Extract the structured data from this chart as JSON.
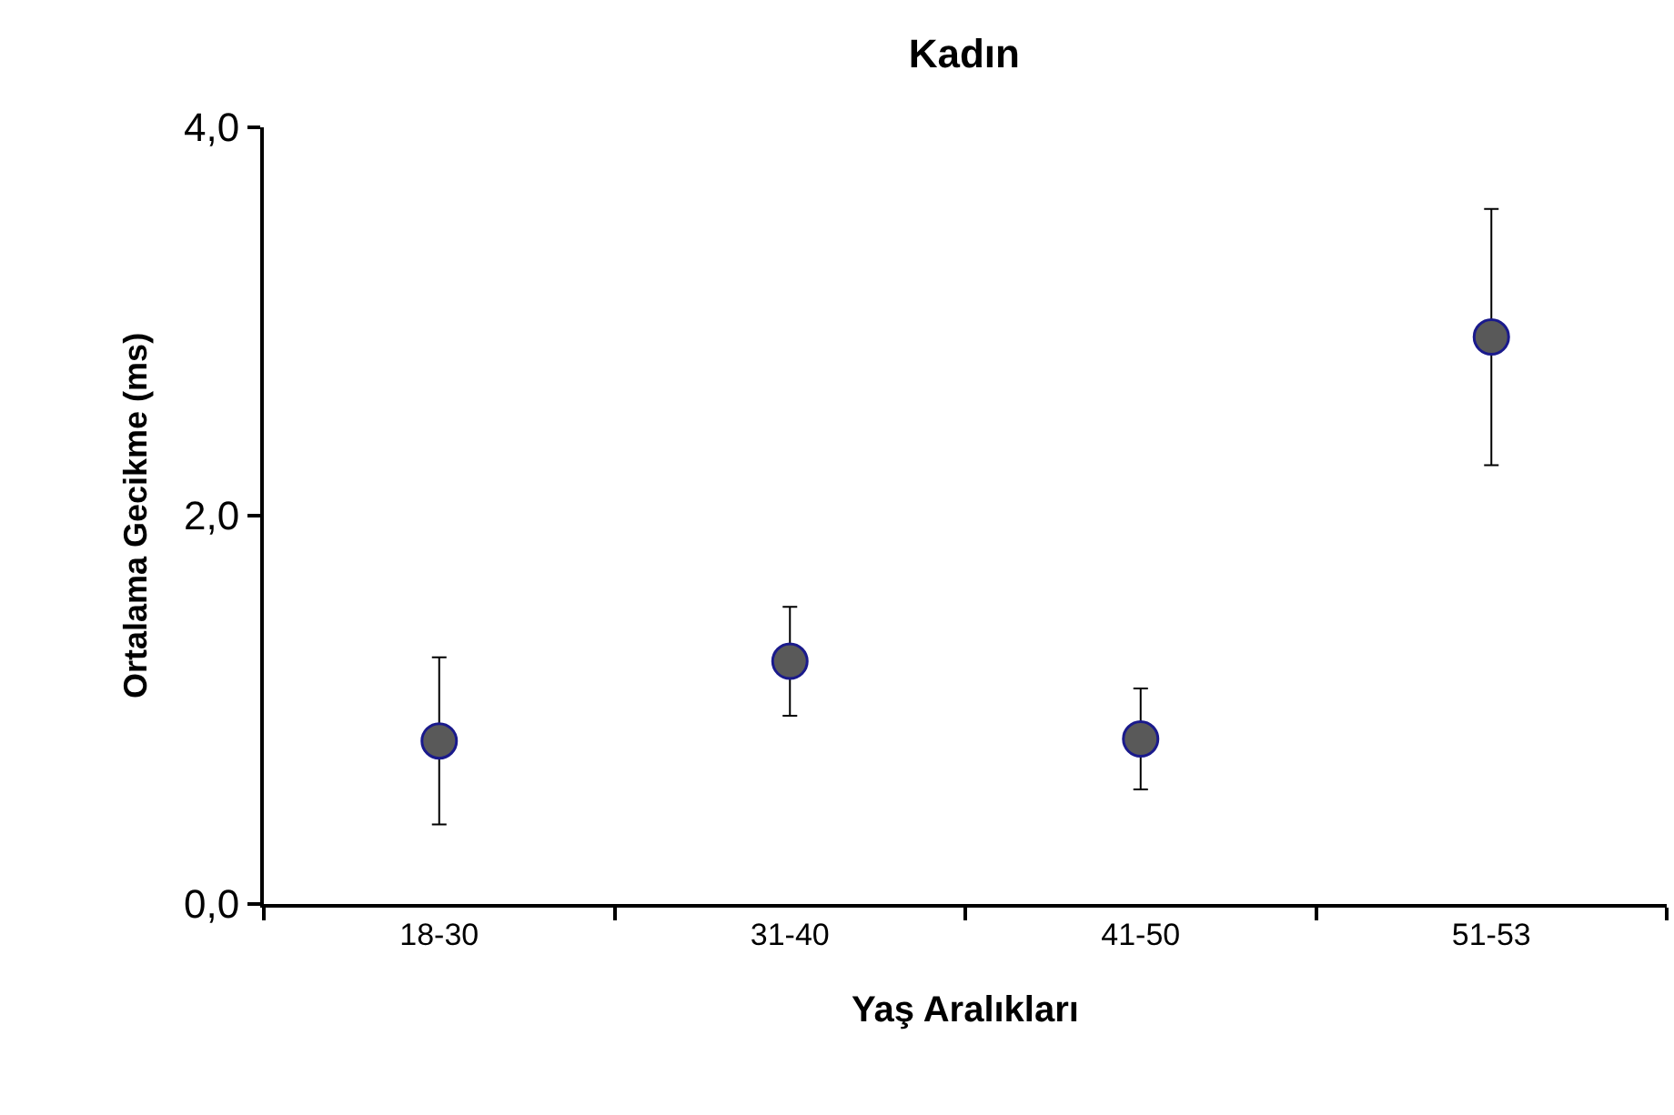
{
  "chart_data": {
    "type": "scatter",
    "title": "Kadın",
    "xlabel": "Yaş Aralıkları",
    "ylabel": "Ortalama Gecikme (ms)",
    "categories": [
      "18-30",
      "31-40",
      "41-50",
      "51-53"
    ],
    "series": [
      {
        "color": "#595959",
        "values": [
          0.84,
          1.25,
          0.85,
          2.92
        ],
        "errors": [
          0.43,
          0.28,
          0.26,
          0.66
        ]
      }
    ],
    "ylim": [
      0,
      4
    ],
    "yticks": [
      {
        "value": 0,
        "label": "0,0"
      },
      {
        "value": 2,
        "label": "2,0"
      },
      {
        "value": 4,
        "label": "4,0"
      }
    ],
    "marker": "circle"
  }
}
